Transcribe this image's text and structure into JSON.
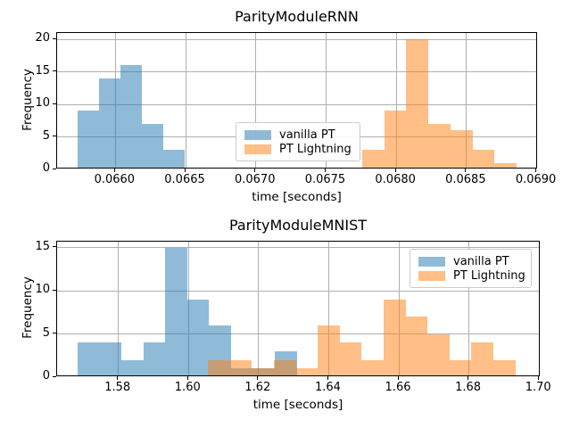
{
  "figure": {
    "background": "#ffffff"
  },
  "colors": {
    "vanilla_pt": "#1f77b4",
    "pt_lightning": "#ff7f0e",
    "fill_alpha": 0.5,
    "grid": "#b0b0b0",
    "spine": "#000000",
    "text": "#000000",
    "legend_border": "#cccccc"
  },
  "chart_data": [
    {
      "type": "histogram",
      "title": "ParityModuleRNN",
      "xlabel": "time [seconds]",
      "ylabel": "Frequency",
      "xlim": [
        0.065585,
        0.069009
      ],
      "ylim": [
        0,
        21
      ],
      "xticks": [
        0.066,
        0.0665,
        0.067,
        0.0675,
        0.068,
        0.0685,
        0.069
      ],
      "xtick_labels": [
        "0.0660",
        "0.0665",
        "0.0670",
        "0.0675",
        "0.0680",
        "0.0685",
        "0.0690"
      ],
      "yticks": [
        0,
        5,
        10,
        15,
        20
      ],
      "grid": true,
      "legend_position": "center",
      "series": [
        {
          "label": "vanilla PT",
          "color_key": "vanilla_pt",
          "bin_start": 0.065731,
          "bin_width": 0.000153,
          "counts": [
            9,
            14,
            16,
            7,
            3
          ]
        },
        {
          "label": "PT Lightning",
          "color_key": "pt_lightning",
          "bin_start": 0.067758,
          "bin_width": 0.000157,
          "counts": [
            3,
            9,
            20,
            7,
            6,
            3,
            1
          ]
        }
      ]
    },
    {
      "type": "histogram",
      "title": "ParityModuleMNIST",
      "xlabel": "time [seconds]",
      "ylabel": "Frequency",
      "xlim": [
        1.56252,
        1.70046
      ],
      "ylim": [
        0,
        15.7
      ],
      "xticks": [
        1.58,
        1.6,
        1.62,
        1.64,
        1.66,
        1.68,
        1.7
      ],
      "xtick_labels": [
        "1.58",
        "1.60",
        "1.62",
        "1.64",
        "1.66",
        "1.68",
        "1.70"
      ],
      "yticks": [
        0,
        5,
        10,
        15
      ],
      "grid": true,
      "legend_position": "upper right",
      "series": [
        {
          "label": "vanilla PT",
          "color_key": "vanilla_pt",
          "bin_start": 1.56837,
          "bin_width": 0.006253,
          "counts": [
            4,
            4,
            2,
            4,
            15,
            9,
            6,
            1,
            1,
            3
          ]
        },
        {
          "label": "PT Lightning",
          "color_key": "pt_lightning",
          "bin_start": 1.6056,
          "bin_width": 0.006261,
          "counts": [
            2,
            2,
            1,
            2,
            1,
            6,
            4,
            2,
            9,
            7,
            5,
            2,
            4,
            2
          ]
        }
      ]
    }
  ]
}
